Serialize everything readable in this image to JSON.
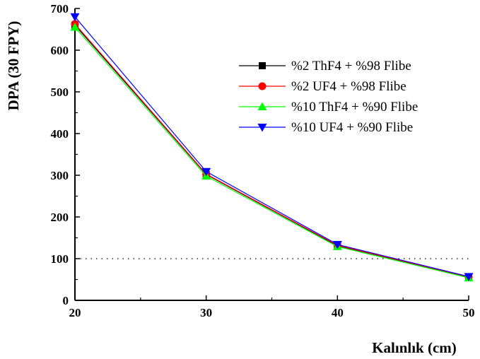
{
  "chart_data": {
    "type": "line",
    "xlabel": "Kalınlık (cm)",
    "ylabel": "DPA (30 FPY)",
    "x": [
      20,
      30,
      40,
      50
    ],
    "xlim": [
      20,
      50
    ],
    "ylim": [
      0,
      700
    ],
    "xticks": [
      20,
      30,
      40,
      50
    ],
    "yticks": [
      0,
      100,
      200,
      300,
      400,
      500,
      600,
      700
    ],
    "reference_line": {
      "y": 100,
      "style": "dotted"
    },
    "grid": false,
    "legend_position": "top-right",
    "series": [
      {
        "name": "%2 ThF4 + %98 Flibe",
        "color": "#000000",
        "marker": "square",
        "values": [
          660,
          302,
          131,
          56
        ]
      },
      {
        "name": "%2 UF4 + %98 Flibe",
        "color": "#ff0000",
        "marker": "circle",
        "values": [
          663,
          303,
          132,
          56
        ]
      },
      {
        "name": "%10 ThF4 + %90 Flibe",
        "color": "#00ff00",
        "marker": "triangle-up",
        "values": [
          655,
          298,
          129,
          54
        ]
      },
      {
        "name": "%10 UF4 + %90 Flibe",
        "color": "#0000ff",
        "marker": "triangle-down",
        "values": [
          680,
          309,
          134,
          57
        ]
      }
    ]
  }
}
